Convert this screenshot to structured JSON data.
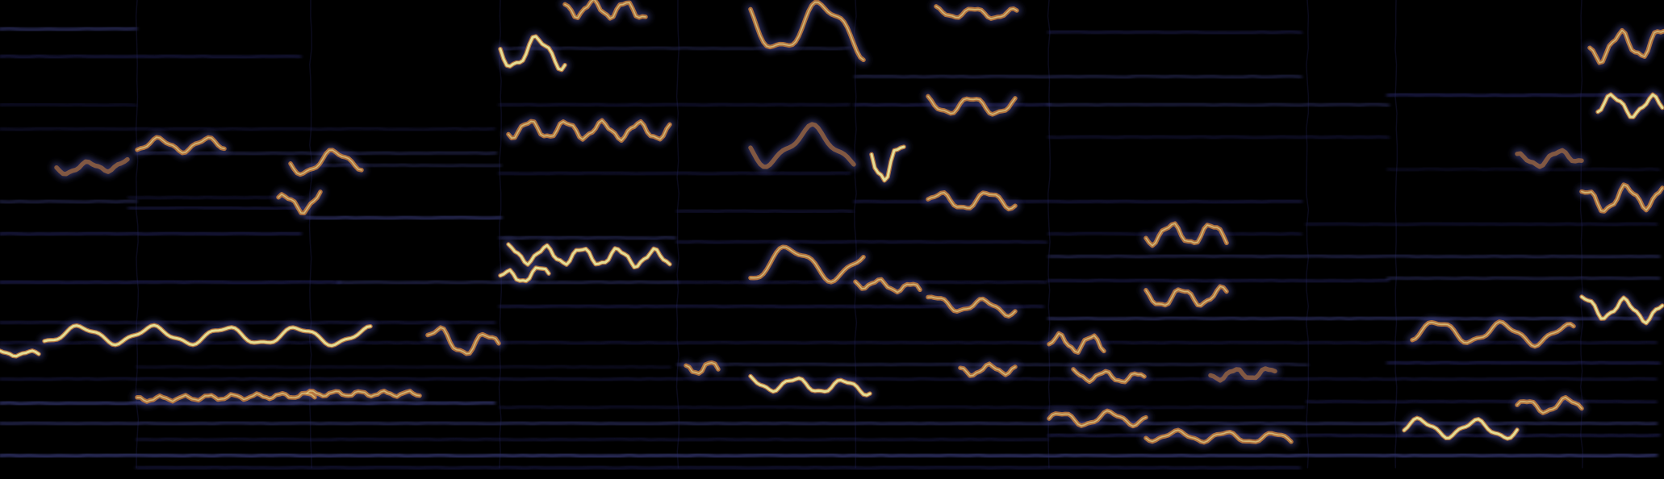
{
  "image": {
    "kind": "spectrogram",
    "colors": {
      "background": "#000000",
      "harmonic_low": "#2a2a6e",
      "harmonic_mid": "#4b4fa0",
      "energy_mid": "#c07a3c",
      "energy_high": "#e8e39a"
    }
  }
}
